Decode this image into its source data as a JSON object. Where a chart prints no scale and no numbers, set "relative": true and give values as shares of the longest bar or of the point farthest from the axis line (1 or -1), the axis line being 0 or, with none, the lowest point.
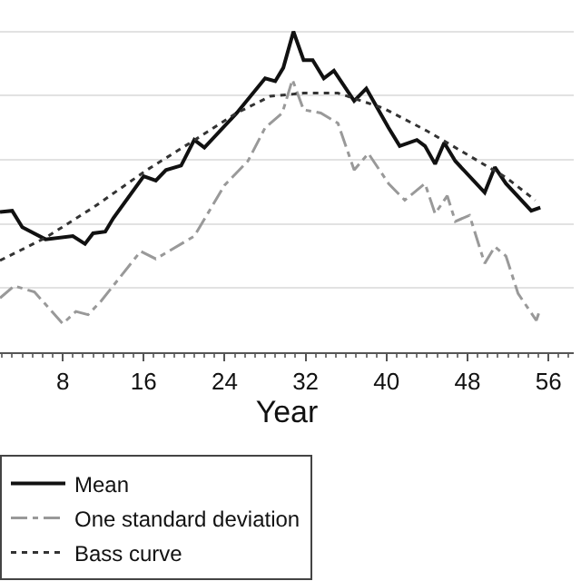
{
  "chart_data": {
    "type": "line",
    "xlabel": "Year",
    "relative": true,
    "grid": "y",
    "legend": "bottom",
    "marker": "none",
    "xlim": [
      1.8,
      58.5
    ],
    "xticks": [
      8,
      16,
      24,
      32,
      40,
      48,
      56
    ],
    "series": [
      {
        "name": "Mean",
        "color": "#111111",
        "line_style": "solid",
        "x": [
          1.8,
          3.0,
          4.0,
          6.3,
          9.0,
          10.2,
          11.0,
          12.2,
          13.0,
          16.0,
          17.2,
          18.2,
          19.7,
          21.0,
          22.0,
          25.2,
          28.0,
          29.0,
          29.8,
          30.8,
          31.8,
          32.7,
          33.8,
          34.8,
          36.8,
          38.0,
          40.2,
          41.3,
          43.0,
          43.8,
          44.8,
          45.7,
          46.8,
          49.7,
          50.7,
          51.8,
          54.3,
          55.2
        ],
        "values": [
          0.437,
          0.441,
          0.39,
          0.352,
          0.362,
          0.338,
          0.371,
          0.376,
          0.418,
          0.549,
          0.535,
          0.568,
          0.582,
          0.662,
          0.638,
          0.746,
          0.854,
          0.845,
          0.887,
          1,
          0.911,
          0.911,
          0.854,
          0.878,
          0.784,
          0.822,
          0.7,
          0.643,
          0.662,
          0.643,
          0.587,
          0.653,
          0.596,
          0.498,
          0.577,
          0.526,
          0.441,
          0.451
        ]
      },
      {
        "name": "One standard deviation",
        "color": "#999999",
        "line_style": "dashed",
        "x": [
          1.8,
          3.2,
          5.2,
          8.0,
          9.3,
          10.5,
          11.8,
          15.7,
          17.2,
          21.0,
          24.0,
          26.3,
          28.0,
          29.7,
          30.7,
          31.8,
          33.5,
          35.2,
          36.8,
          38.2,
          40.2,
          41.8,
          43.8,
          44.8,
          46.0,
          46.8,
          48.2,
          49.7,
          50.7,
          51.8,
          53.0,
          54.8,
          55.2
        ],
        "values": [
          0.169,
          0.207,
          0.188,
          0.089,
          0.127,
          0.117,
          0.16,
          0.315,
          0.291,
          0.362,
          0.521,
          0.596,
          0.7,
          0.746,
          0.85,
          0.756,
          0.746,
          0.714,
          0.568,
          0.62,
          0.526,
          0.474,
          0.526,
          0.432,
          0.488,
          0.408,
          0.427,
          0.277,
          0.329,
          0.3,
          0.183,
          0.099,
          0.136
        ]
      },
      {
        "name": "Bass curve",
        "color": "#333333",
        "line_style": "dotted",
        "x": [
          1.8,
          6.3,
          11.0,
          16.3,
          21.3,
          25.2,
          28.5,
          31.8,
          35.2,
          39.7,
          44.0,
          47.3,
          51.8,
          54.7
        ],
        "values": [
          0.286,
          0.357,
          0.451,
          0.568,
          0.667,
          0.746,
          0.798,
          0.808,
          0.808,
          0.761,
          0.69,
          0.629,
          0.545,
          0.474
        ]
      }
    ]
  }
}
